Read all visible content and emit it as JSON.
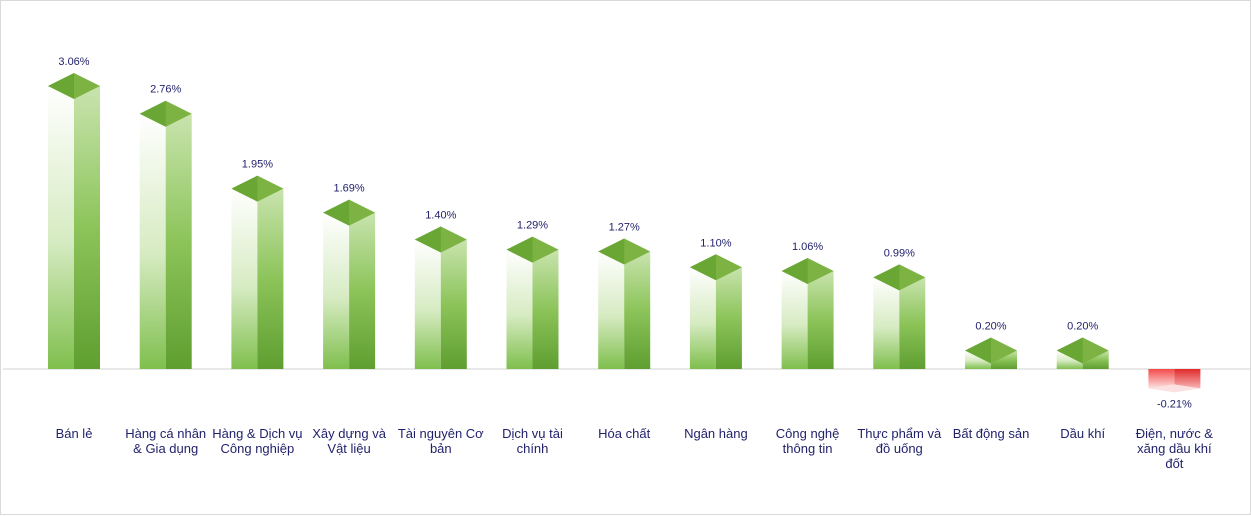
{
  "chart_data": {
    "type": "bar",
    "title": "",
    "xlabel": "",
    "ylabel": "",
    "categories": [
      "Bán lẻ",
      "Hàng cá nhân & Gia dụng",
      "Hàng & Dịch vụ Công nghiệp",
      "Xây dựng và Vật liệu",
      "Tài nguyên Cơ bản",
      "Dịch vụ tài chính",
      "Hóa chất",
      "Ngân hàng",
      "Công nghệ thông tin",
      "Thực phẩm và đồ uống",
      "Bất động sản",
      "Dầu khí",
      "Điện, nước & xăng dầu khí đốt"
    ],
    "values": [
      3.06,
      2.76,
      1.95,
      1.69,
      1.4,
      1.29,
      1.27,
      1.1,
      1.06,
      0.99,
      0.2,
      0.2,
      -0.21
    ],
    "value_labels": [
      "3.06%",
      "2.76%",
      "1.95%",
      "1.69%",
      "1.40%",
      "1.29%",
      "1.27%",
      "1.10%",
      "1.06%",
      "0.99%",
      "0.20%",
      "0.20%",
      "-0.21%"
    ],
    "unit": "%",
    "grid": false,
    "legend": "none",
    "colors": {
      "positive_dark": "#5a9a2a",
      "positive_mid": "#7cb342",
      "positive_light": "#e8f3dc",
      "negative_dark": "#e32222",
      "negative_light": "#fbe1e1",
      "baseline": "#d0d0d0",
      "label_text": "#1f1f6b"
    }
  }
}
